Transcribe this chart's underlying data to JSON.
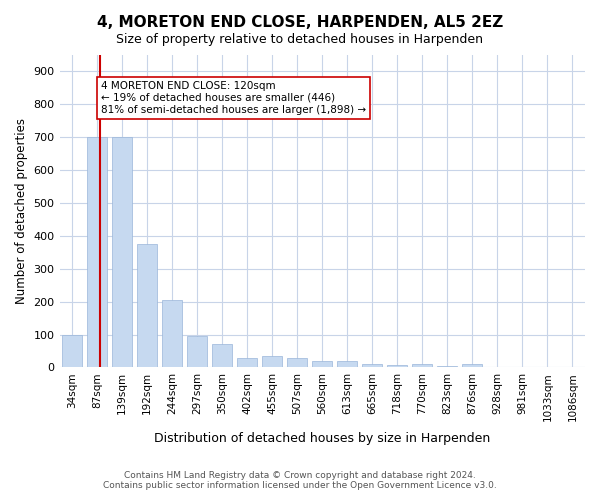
{
  "title": "4, MORETON END CLOSE, HARPENDEN, AL5 2EZ",
  "subtitle": "Size of property relative to detached houses in Harpenden",
  "xlabel": "Distribution of detached houses by size in Harpenden",
  "ylabel": "Number of detached properties",
  "bin_labels": [
    "34sqm",
    "87sqm",
    "139sqm",
    "192sqm",
    "244sqm",
    "297sqm",
    "350sqm",
    "402sqm",
    "455sqm",
    "507sqm",
    "560sqm",
    "613sqm",
    "665sqm",
    "718sqm",
    "770sqm",
    "823sqm",
    "876sqm",
    "928sqm",
    "981sqm",
    "1033sqm",
    "1086sqm"
  ],
  "bar_values": [
    100,
    700,
    700,
    375,
    205,
    95,
    70,
    30,
    35,
    30,
    20,
    20,
    10,
    7,
    10,
    5,
    10,
    0,
    0,
    0,
    0
  ],
  "bar_color": "#c6d9f0",
  "bar_edgecolor": "#9ab5d9",
  "grid_color": "#c8d4e8",
  "background_color": "#ffffff",
  "property_size": 120,
  "property_label": "4 MORETON END CLOSE: 120sqm",
  "annotation_line1": "← 19% of detached houses are smaller (446)",
  "annotation_line2": "81% of semi-detached houses are larger (1,898) →",
  "red_line_color": "#cc0000",
  "annotation_box_edgecolor": "#cc0000",
  "yticks": [
    0,
    100,
    200,
    300,
    400,
    500,
    600,
    700,
    800,
    900
  ],
  "ylim": [
    0,
    950
  ],
  "footnote1": "Contains HM Land Registry data © Crown copyright and database right 2024.",
  "footnote2": "Contains public sector information licensed under the Open Government Licence v3.0."
}
